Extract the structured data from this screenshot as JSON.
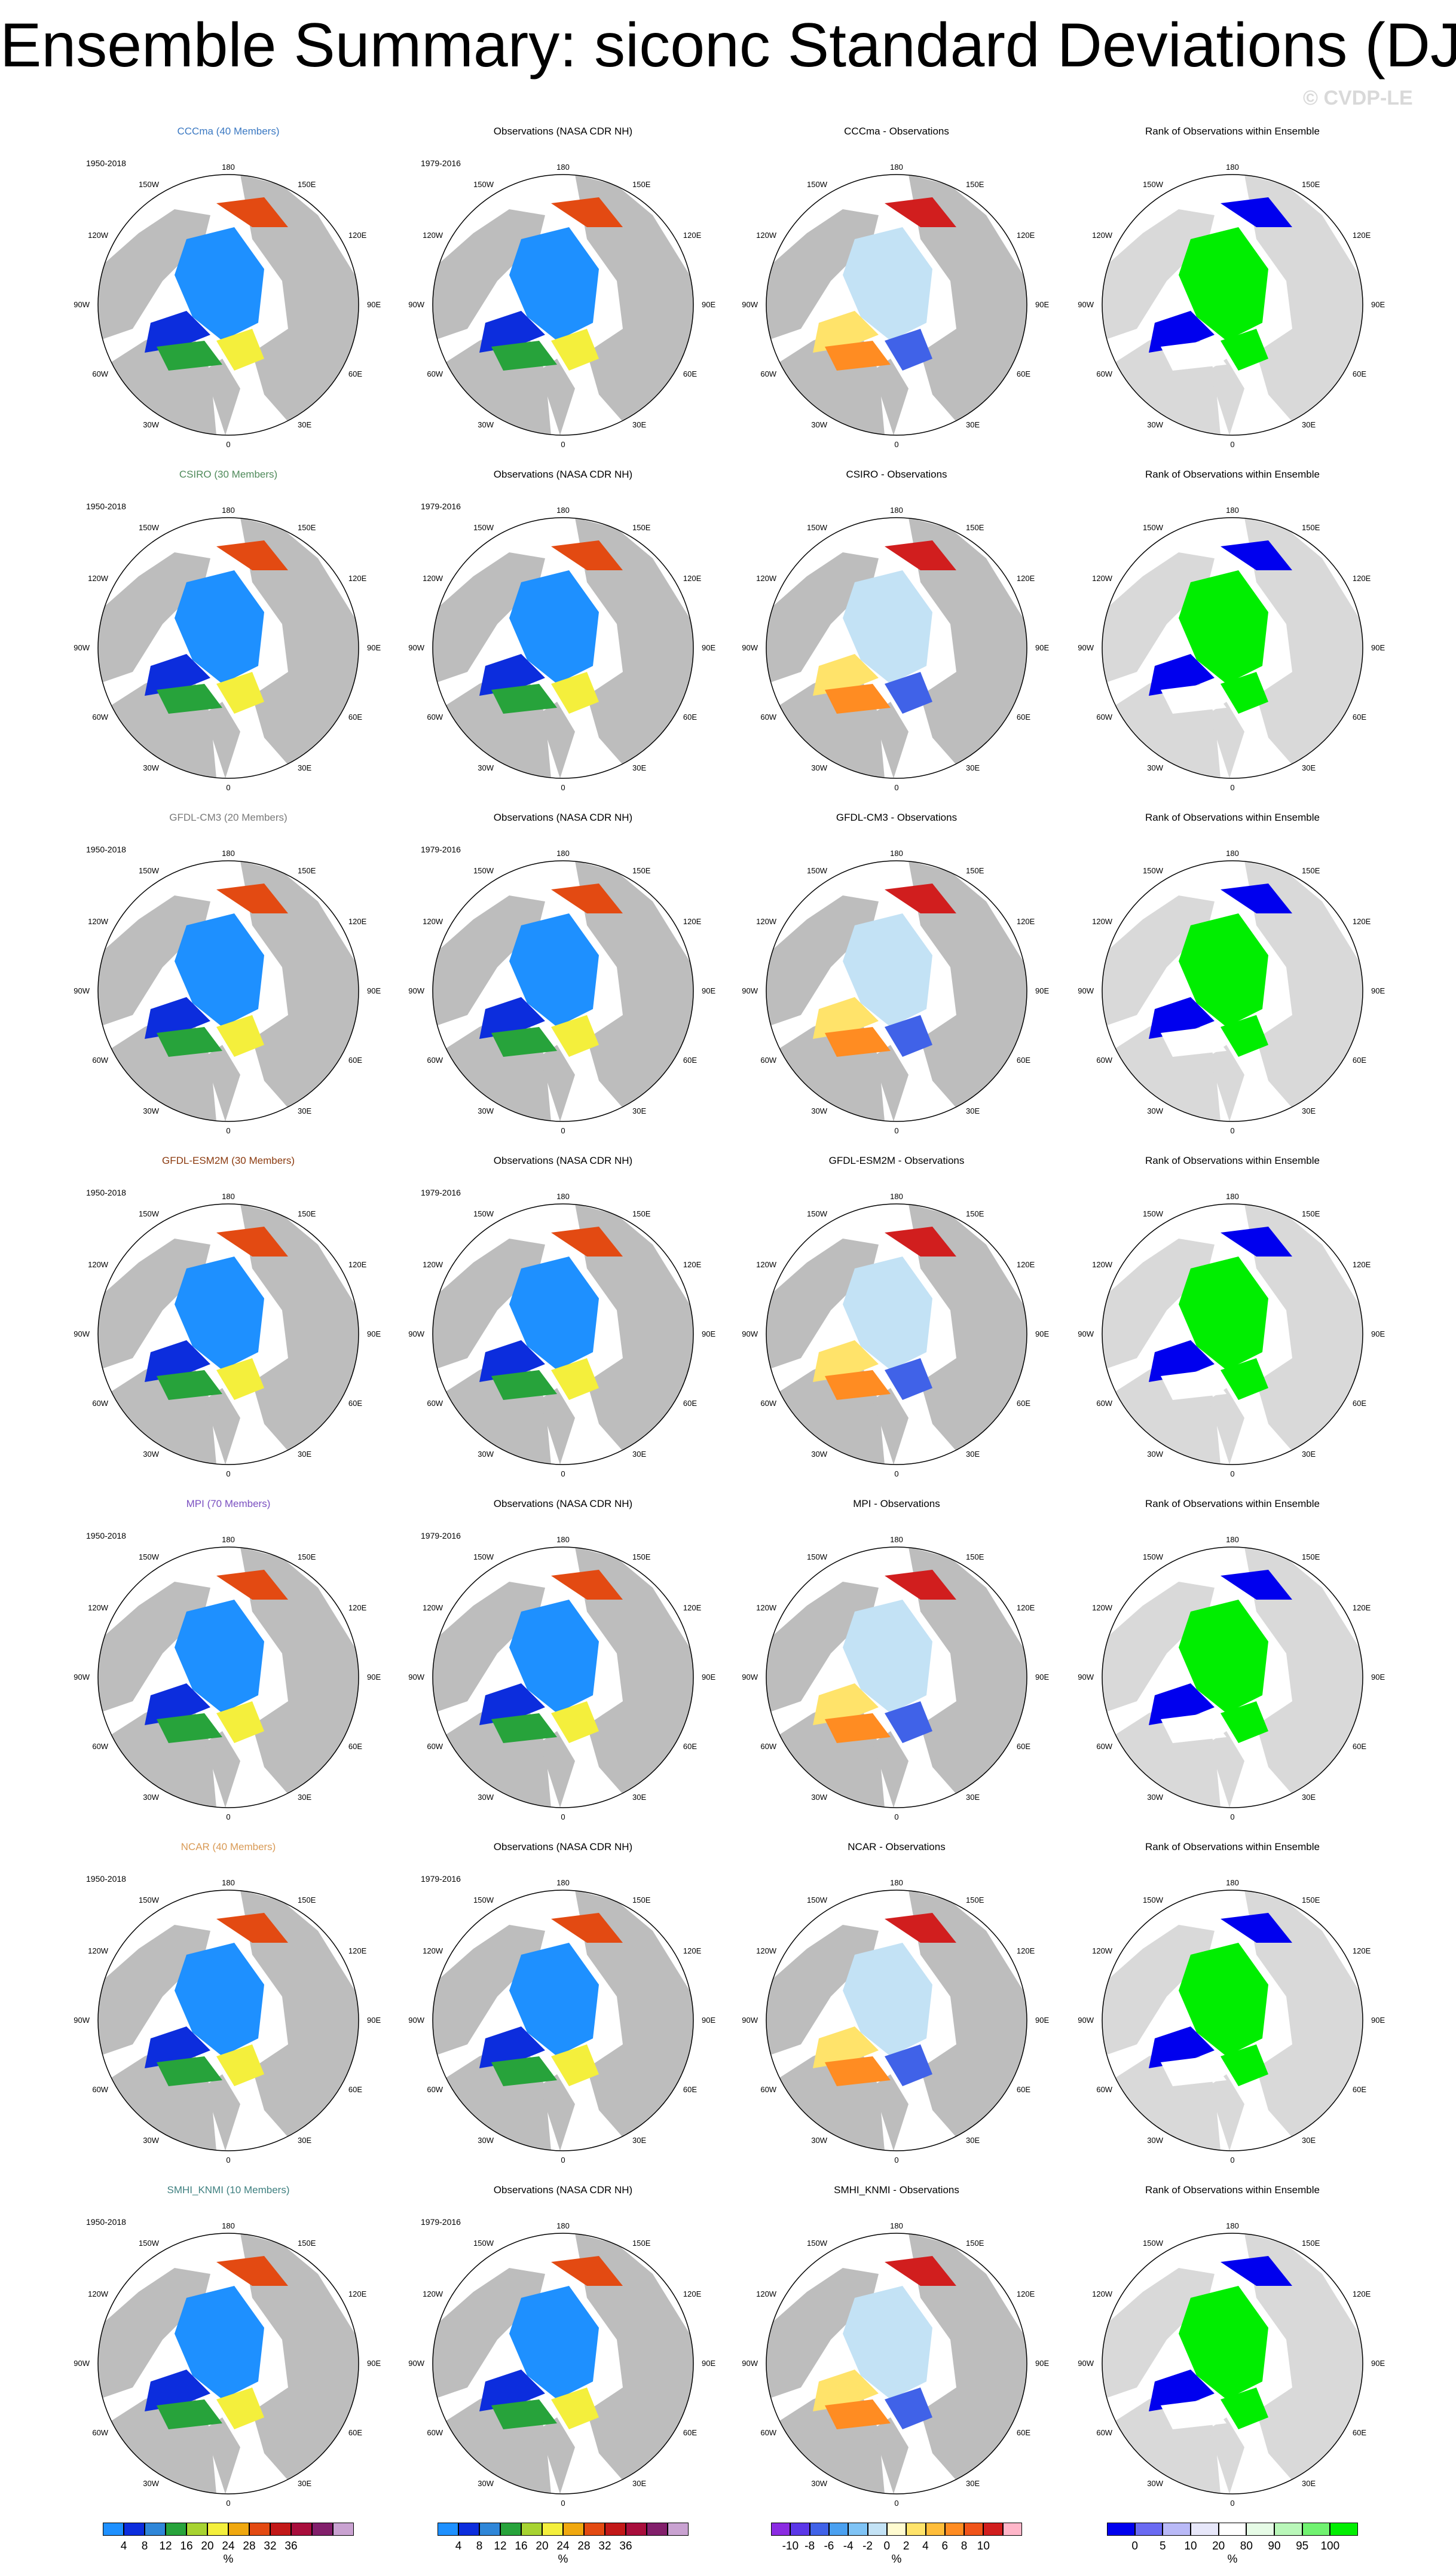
{
  "title": "Ensemble Summary: siconc Standard Deviations (DJF)",
  "watermark": "© CVDP-LE",
  "column_titles": {
    "observations": "Observations (NASA CDR NH)",
    "rank": "Rank of Observations within Ensemble"
  },
  "periods": {
    "model": "1950-2018",
    "observations": "1979-2016"
  },
  "models": [
    {
      "title": "CCCma (40 Members)",
      "diff_title": "CCCma - Observations",
      "color": "#3a78c2"
    },
    {
      "title": "CSIRO (30 Members)",
      "diff_title": "CSIRO - Observations",
      "color": "#4f8a5a"
    },
    {
      "title": "GFDL-CM3 (20 Members)",
      "diff_title": "GFDL-CM3 - Observations",
      "color": "#7a7a7a"
    },
    {
      "title": "GFDL-ESM2M (30 Members)",
      "diff_title": "GFDL-ESM2M - Observations",
      "color": "#8b3a0f"
    },
    {
      "title": "MPI (70 Members)",
      "diff_title": "MPI - Observations",
      "color": "#7a4fc0"
    },
    {
      "title": "NCAR (40 Members)",
      "diff_title": "NCAR - Observations",
      "color": "#d99a55"
    },
    {
      "title": "SMHI_KNMI (10 Members)",
      "diff_title": "SMHI_KNMI - Observations",
      "color": "#3f8080"
    }
  ],
  "map_labels": {
    "top": "180",
    "bottom": "0",
    "left": [
      "150W",
      "120W",
      "90W",
      "60W",
      "30W"
    ],
    "right": [
      "150E",
      "120E",
      "90E",
      "60E",
      "30E"
    ]
  },
  "colorbars": {
    "stddev": {
      "labels": [
        "4",
        "8",
        "12",
        "16",
        "20",
        "24",
        "28",
        "32",
        "36"
      ],
      "unit": "%",
      "colors": [
        "#1e90ff",
        "#0c2ddd",
        "#2f86d8",
        "#27a33b",
        "#a7d331",
        "#f4ef3c",
        "#f0a80f",
        "#e34a12",
        "#c21818",
        "#a80e3c",
        "#821f6b",
        "#c9a2d1"
      ]
    },
    "difference": {
      "labels": [
        "-10",
        "-8",
        "-6",
        "-4",
        "-2",
        "0",
        "2",
        "4",
        "6",
        "8",
        "10"
      ],
      "unit": "%",
      "colors": [
        "#8b2be2",
        "#5b37e8",
        "#4062e8",
        "#4aa0f0",
        "#7fc3f5",
        "#c3e2f5",
        "#fffbd0",
        "#ffe36a",
        "#ffbd3a",
        "#ff8c22",
        "#f0541a",
        "#d11e1e",
        "#ffb6c9"
      ]
    },
    "rank": {
      "labels": [
        "0",
        "5",
        "10",
        "20",
        "80",
        "90",
        "95",
        "100"
      ],
      "unit": "%",
      "colors": [
        "#0000ee",
        "#6a6af2",
        "#b9b9f7",
        "#e7e7fa",
        "#ffffff",
        "#e6fbe6",
        "#b9f7b9",
        "#70f270",
        "#00ee00"
      ]
    }
  }
}
